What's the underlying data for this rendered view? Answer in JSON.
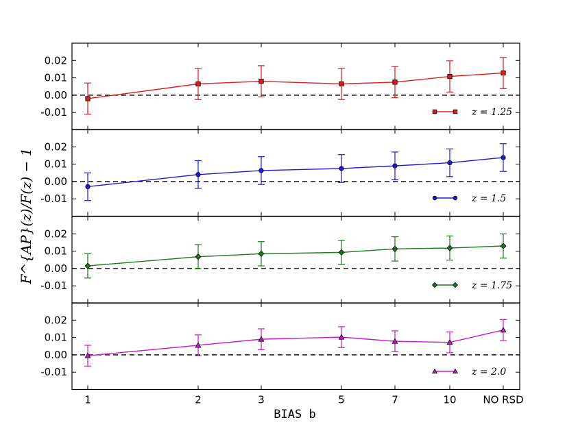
{
  "chart_data": {
    "type": "line",
    "x_ticks": [
      "1",
      "2",
      "3",
      "5",
      "7",
      "10",
      "NO RSD"
    ],
    "xlabel": "BIAS b",
    "ylabel": "F^{AP}(z)/F(z) − 1",
    "y_ticks": [
      "0.02",
      "0.01",
      "0.00",
      "-0.01"
    ],
    "ylim": [
      -0.02,
      0.03
    ],
    "reference_line": 0.0,
    "panels": [
      {
        "legend": "z = 1.25",
        "color": "#e31a1c",
        "marker": "square",
        "values": [
          -0.002,
          0.0065,
          0.008,
          0.0065,
          0.0075,
          0.0108,
          0.0128
        ],
        "errors": [
          0.009,
          0.009,
          0.009,
          0.009,
          0.009,
          0.009,
          0.009
        ]
      },
      {
        "legend": "z = 1.5",
        "color": "#1a1ad9",
        "marker": "circle",
        "values": [
          -0.003,
          0.004,
          0.0063,
          0.0075,
          0.009,
          0.0108,
          0.0138
        ],
        "errors": [
          0.008,
          0.008,
          0.008,
          0.008,
          0.008,
          0.008,
          0.008
        ]
      },
      {
        "legend": "z = 1.75",
        "color": "#1b7a1b",
        "marker": "diamond",
        "values": [
          0.0015,
          0.0068,
          0.0085,
          0.0093,
          0.0113,
          0.0118,
          0.013
        ],
        "errors": [
          0.007,
          0.007,
          0.007,
          0.007,
          0.007,
          0.007,
          0.007
        ]
      },
      {
        "legend": "z = 2.0",
        "color": "#c41bc4",
        "marker": "triangle",
        "values": [
          -0.0005,
          0.0055,
          0.009,
          0.0102,
          0.0078,
          0.0072,
          0.0143
        ],
        "errors": [
          0.006,
          0.006,
          0.006,
          0.006,
          0.006,
          0.006,
          0.006
        ]
      }
    ]
  }
}
